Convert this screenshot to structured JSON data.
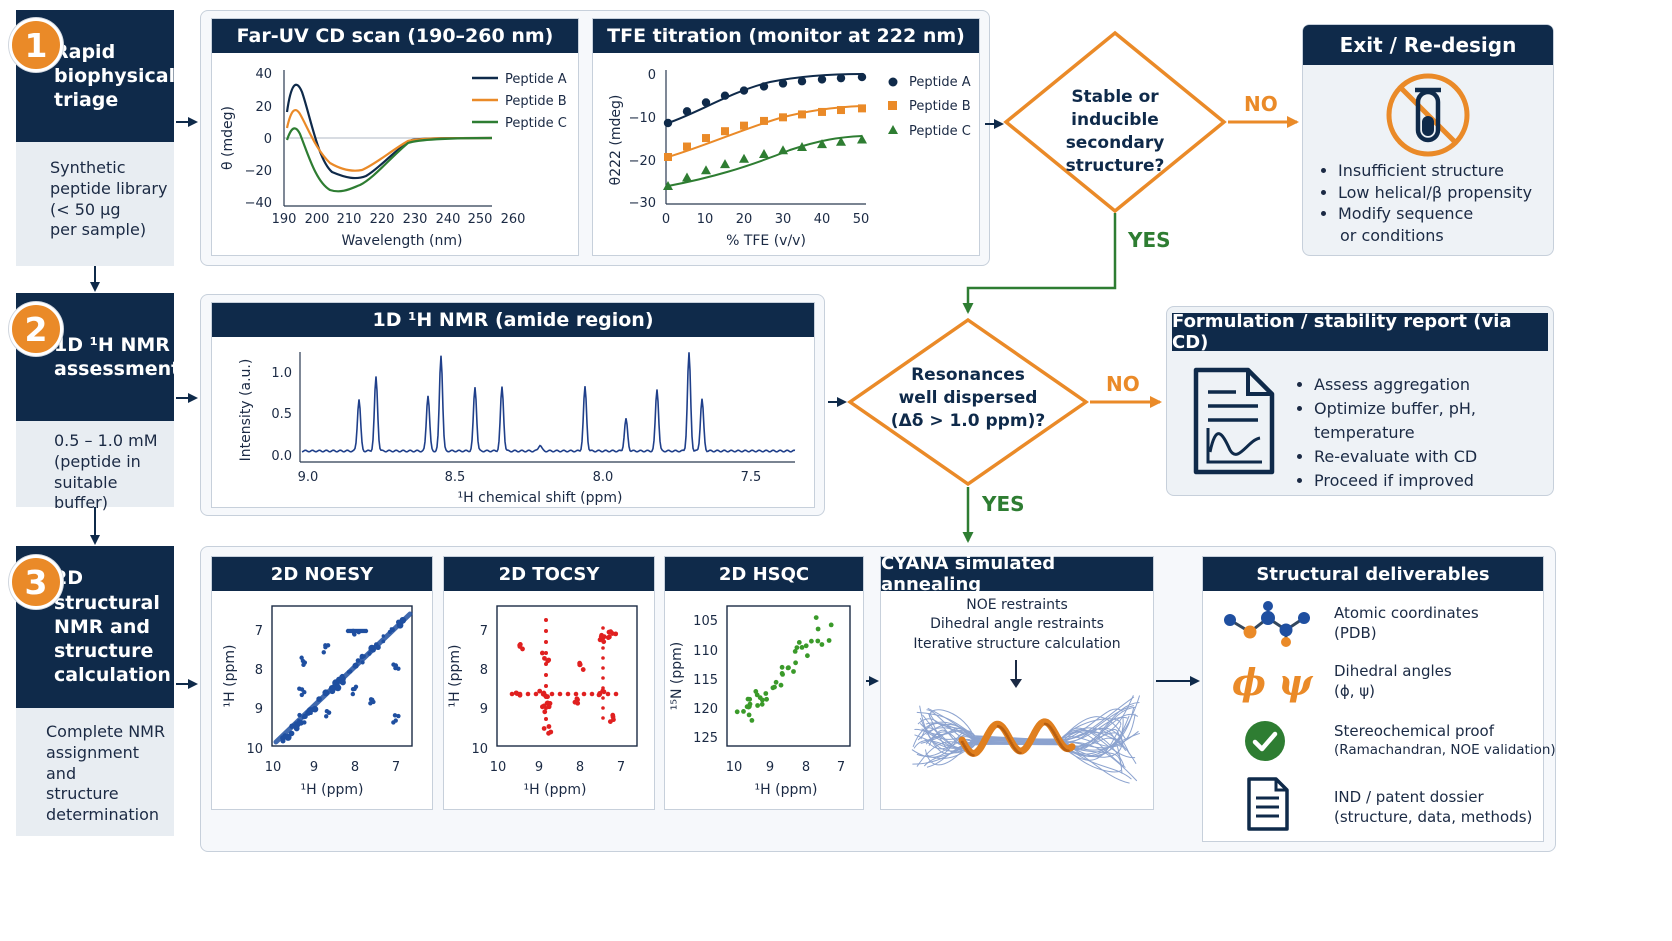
{
  "stages": [
    {
      "number": "1",
      "title_lines": [
        "Rapid",
        "biophysical",
        "triage"
      ],
      "desc_lines": [
        "Synthetic",
        "peptide library",
        "(< 50 µg",
        "per sample)"
      ]
    },
    {
      "number": "2",
      "title_lines": [
        "1D ¹H NMR",
        "assessment"
      ],
      "desc_lines": [
        "0.5 – 1.0 mM",
        "(peptide in",
        "suitable buffer)"
      ]
    },
    {
      "number": "3",
      "title_lines": [
        "2D structural",
        "NMR and",
        "structure",
        "calculation"
      ],
      "desc_lines": [
        "Complete NMR",
        "assignment and",
        "structure",
        "determination"
      ]
    }
  ],
  "cd_panel": {
    "title": "Far-UV CD scan (190–260 nm)",
    "xlabel": "Wavelength (nm)",
    "ylabel": "θ (mdeg)",
    "xticks": [
      "190",
      "200",
      "210",
      "220",
      "230",
      "240",
      "250",
      "260"
    ],
    "yticks": [
      "40",
      "20",
      "0",
      "−20",
      "−40"
    ],
    "legend": [
      "Peptide A",
      "Peptide B",
      "Peptide C"
    ]
  },
  "tfe_panel": {
    "title": "TFE titration (monitor at 222 nm)",
    "xlabel": "% TFE (v/v)",
    "ylabel": "θ222 (mdeg)",
    "xticks": [
      "0",
      "10",
      "20",
      "30",
      "40",
      "50"
    ],
    "yticks": [
      "0",
      "−10",
      "−20",
      "−30"
    ],
    "legend": [
      "Peptide A",
      "Peptide B",
      "Peptide C"
    ]
  },
  "decision1": {
    "lines": [
      "Stable or",
      "inducible secondary",
      "structure?"
    ],
    "no": "NO",
    "yes": "YES"
  },
  "exit_box": {
    "title": "Exit / Re-design",
    "icon": "no-tube-icon",
    "bullets": [
      "Insufficient structure",
      "Low helical/β propensity",
      "Modify sequence",
      "or conditions"
    ]
  },
  "nmr1d_panel": {
    "title": "1D ¹H NMR (amide region)",
    "xlabel": "¹H chemical shift (ppm)",
    "ylabel": "Intensity (a.u.)",
    "xticks": [
      "9.0",
      "8.5",
      "8.0",
      "7.5"
    ],
    "yticks": [
      "1.0",
      "0.5",
      "0.0"
    ]
  },
  "decision2": {
    "lines": [
      "Resonances",
      "well dispersed",
      "(Δδ > 1.0 ppm)?"
    ],
    "no": "NO",
    "yes": "YES"
  },
  "formulation_box": {
    "title": "Formulation / stability report (via CD)",
    "icon": "report-icon",
    "bullets": [
      "Assess aggregation",
      "Optimize buffer, pH, temperature",
      "Re-evaluate with CD",
      "Proceed if improved"
    ]
  },
  "noesy": {
    "title": "2D NOESY",
    "xlabel": "¹H (ppm)",
    "ylabel": "¹H (ppm)",
    "xticks": [
      "10",
      "9",
      "8",
      "7"
    ],
    "yticks": [
      "7",
      "8",
      "9",
      "10"
    ]
  },
  "tocsy": {
    "title": "2D TOCSY",
    "xlabel": "¹H (ppm)",
    "ylabel": "¹H (ppm)",
    "xticks": [
      "10",
      "9",
      "8",
      "7"
    ],
    "yticks": [
      "7",
      "8",
      "9",
      "10"
    ]
  },
  "hsqc": {
    "title": "2D HSQC",
    "xlabel": "¹H (ppm)",
    "ylabel": "¹⁵N (ppm)",
    "xticks": [
      "10",
      "9",
      "8",
      "7"
    ],
    "yticks": [
      "105",
      "110",
      "115",
      "120",
      "125"
    ]
  },
  "cyana": {
    "title": "CYANA simulated annealing",
    "lines": [
      "NOE restraints",
      "Dihedral angle restraints",
      "Iterative structure calculation"
    ]
  },
  "deliverables": {
    "title": "Structural deliverables",
    "items": [
      {
        "icon": "molecule-icon",
        "lines": [
          "Atomic coordinates",
          "(PDB)"
        ]
      },
      {
        "icon": "phi-psi-icon",
        "glyph": "ϕ ψ",
        "lines": [
          "Dihedral angles",
          "(ϕ, ψ)"
        ]
      },
      {
        "icon": "check-icon",
        "lines": [
          "Stereochemical proof",
          "(Ramachandran, NOE validation)"
        ]
      },
      {
        "icon": "document-icon",
        "lines": [
          "IND / patent dossier",
          "(structure, data, methods)"
        ]
      }
    ]
  },
  "colors": {
    "navy": "#0f2a4a",
    "orange": "#ea8a28",
    "green": "#2e7d32",
    "peptideA": "#0f2a4a",
    "peptideB": "#ea8a28",
    "peptideC": "#2e7d32",
    "noesy": "#1f4fa0",
    "tocsy": "#e02020",
    "hsqc": "#3a9a2a"
  }
}
